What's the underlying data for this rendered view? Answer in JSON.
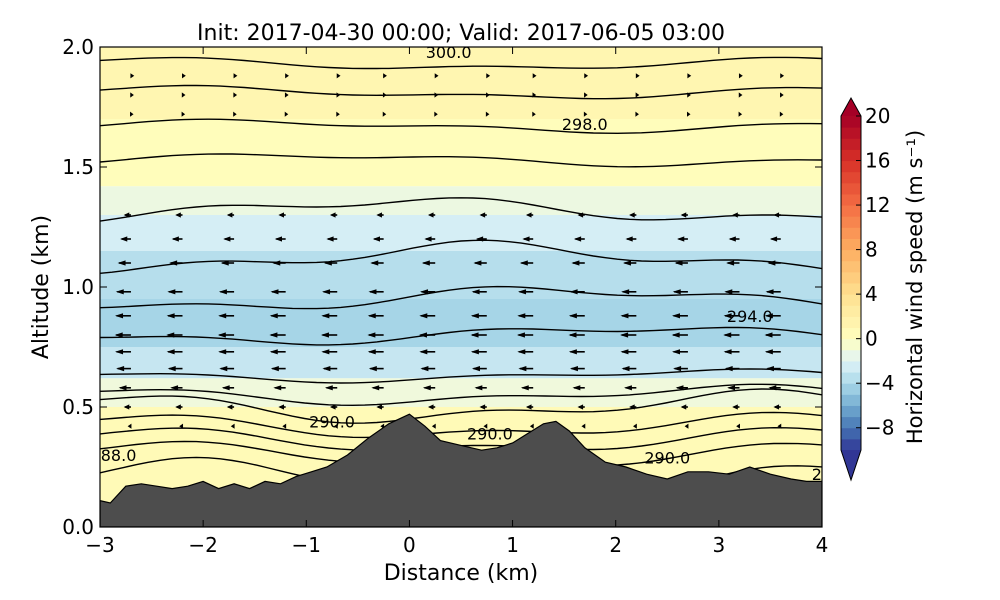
{
  "title": "Init: 2017-04-30 00:00; Valid: 2017-06-05 03:00",
  "chart_data": {
    "type": "heatmap",
    "title": "Init: 2017-04-30 00:00; Valid: 2017-06-05 03:00",
    "xlabel": "Distance (km)",
    "ylabel": "Altitude (km)",
    "xlim": [
      -3,
      4
    ],
    "ylim": [
      0.0,
      2.0
    ],
    "xticks": [
      -3,
      -2,
      -1,
      0,
      1,
      2,
      3,
      4
    ],
    "yticks": [
      "0.0",
      "0.5",
      "1.0",
      "1.5",
      "2.0"
    ],
    "colorbar": {
      "label": "Horizontal wind speed (m s⁻¹)",
      "range": [
        -10,
        20
      ],
      "ticks": [
        "20",
        "16",
        "12",
        "8",
        "4",
        "0",
        "−4",
        "−8"
      ],
      "extend": "both",
      "colormap": "RdYlBu_r"
    },
    "wind_speed_bands": [
      {
        "alt_from": 0.0,
        "alt_to": 0.5,
        "speed": 0.7
      },
      {
        "alt_from": 0.5,
        "alt_to": 0.62,
        "speed": -1.0
      },
      {
        "alt_from": 0.62,
        "alt_to": 0.75,
        "speed": -3.0
      },
      {
        "alt_from": 0.75,
        "alt_to": 0.95,
        "speed": -4.2
      },
      {
        "alt_from": 0.95,
        "alt_to": 1.15,
        "speed": -3.6
      },
      {
        "alt_from": 1.15,
        "alt_to": 1.3,
        "speed": -2.4
      },
      {
        "alt_from": 1.3,
        "alt_to": 1.42,
        "speed": -1.2
      },
      {
        "alt_from": 1.42,
        "alt_to": 1.7,
        "speed": 0.3
      },
      {
        "alt_from": 1.7,
        "alt_to": 2.0,
        "speed": 1.2
      }
    ],
    "terrain": {
      "x": [
        -3.0,
        -2.9,
        -2.75,
        -2.6,
        -2.45,
        -2.3,
        -2.15,
        -2.0,
        -1.85,
        -1.7,
        -1.55,
        -1.4,
        -1.25,
        -1.1,
        -0.95,
        -0.8,
        -0.6,
        -0.4,
        -0.2,
        0.0,
        0.15,
        0.3,
        0.5,
        0.7,
        0.85,
        1.0,
        1.15,
        1.3,
        1.42,
        1.55,
        1.7,
        1.9,
        2.1,
        2.3,
        2.5,
        2.7,
        2.9,
        3.1,
        3.3,
        3.5,
        3.7,
        3.85,
        4.0
      ],
      "altitude": [
        0.11,
        0.1,
        0.17,
        0.18,
        0.17,
        0.16,
        0.17,
        0.19,
        0.16,
        0.18,
        0.16,
        0.19,
        0.18,
        0.21,
        0.23,
        0.25,
        0.3,
        0.37,
        0.43,
        0.47,
        0.42,
        0.36,
        0.34,
        0.32,
        0.33,
        0.35,
        0.39,
        0.43,
        0.44,
        0.4,
        0.33,
        0.27,
        0.25,
        0.22,
        0.2,
        0.23,
        0.23,
        0.22,
        0.25,
        0.22,
        0.2,
        0.19,
        0.19
      ]
    },
    "theta_contours": [
      {
        "base": 0.2,
        "amp": 0.06
      },
      {
        "base": 0.3,
        "amp": 0.04
      },
      {
        "base": 0.36,
        "amp": 0.04
      },
      {
        "base": 0.42,
        "amp": 0.04
      },
      {
        "base": 0.5,
        "amp": 0.05
      },
      {
        "base": 0.55,
        "amp": 0.03
      },
      {
        "base": 0.63,
        "amp": 0.02
      },
      {
        "base": 0.8,
        "amp": 0.03
      },
      {
        "base": 0.95,
        "amp": 0.04
      },
      {
        "base": 1.12,
        "amp": 0.05
      },
      {
        "base": 1.32,
        "amp": 0.04
      },
      {
        "base": 1.53,
        "amp": 0.02
      },
      {
        "base": 1.67,
        "amp": 0.02
      },
      {
        "base": 1.81,
        "amp": 0.02
      },
      {
        "base": 1.93,
        "amp": 0.02
      }
    ],
    "contour_labels": [
      {
        "text": "300.0",
        "x": 0.38,
        "y": 1.98
      },
      {
        "text": "298.0",
        "x": 1.7,
        "y": 1.68
      },
      {
        "text": "294.0",
        "x": 3.3,
        "y": 0.88
      },
      {
        "text": "290.0",
        "x": -0.75,
        "y": 0.44
      },
      {
        "text": "290.0",
        "x": 0.78,
        "y": 0.39
      },
      {
        "text": "290.0",
        "x": 2.5,
        "y": 0.29
      },
      {
        "text": "88.0",
        "x": -2.82,
        "y": 0.3
      },
      {
        "text": "2",
        "x": 3.95,
        "y": 0.22
      }
    ],
    "wind_vectors": {
      "x_positions": [
        -2.7,
        -2.2,
        -1.7,
        -1.2,
        -0.7,
        -0.25,
        0.25,
        0.75,
        1.2,
        1.7,
        2.2,
        2.7,
        3.2,
        3.6
      ],
      "levels": [
        {
          "alt": 1.3,
          "u": -1.6
        },
        {
          "alt": 1.2,
          "u": -2.6
        },
        {
          "alt": 1.1,
          "u": -3.3
        },
        {
          "alt": 0.98,
          "u": -3.8
        },
        {
          "alt": 0.88,
          "u": -4.0
        },
        {
          "alt": 0.8,
          "u": -4.1
        },
        {
          "alt": 0.73,
          "u": -4.0
        },
        {
          "alt": 0.66,
          "u": -3.7
        },
        {
          "alt": 0.58,
          "u": -3.0
        },
        {
          "alt": 0.5,
          "u": -1.6
        },
        {
          "alt": 0.42,
          "u": -0.5
        },
        {
          "alt": 1.88,
          "u": 0.5
        },
        {
          "alt": 1.8,
          "u": 0.4
        },
        {
          "alt": 1.72,
          "u": 0.3
        }
      ]
    }
  }
}
